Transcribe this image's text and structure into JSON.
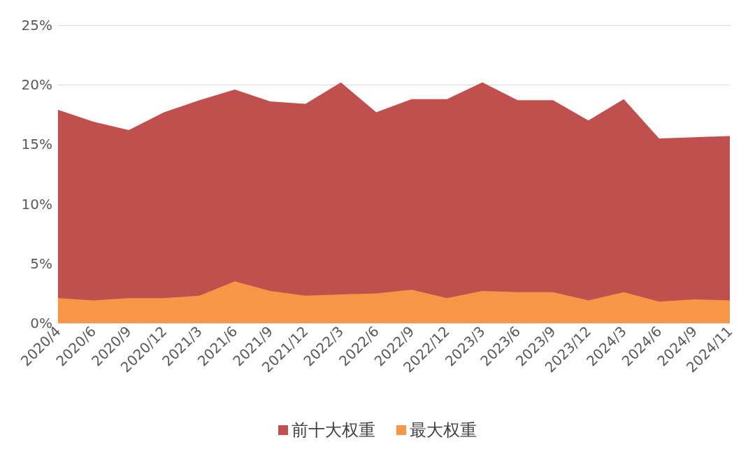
{
  "chart_data": {
    "type": "area",
    "categories": [
      "2020/4",
      "2020/6",
      "2020/9",
      "2020/12",
      "2021/3",
      "2021/6",
      "2021/9",
      "2021/12",
      "2022/3",
      "2022/6",
      "2022/9",
      "2022/12",
      "2023/3",
      "2023/6",
      "2023/9",
      "2023/12",
      "2024/3",
      "2024/6",
      "2024/9",
      "2024/11"
    ],
    "series": [
      {
        "name": "前十大权重",
        "color": "#c0504d",
        "values": [
          17.9,
          16.9,
          16.2,
          17.7,
          18.7,
          19.6,
          18.6,
          18.4,
          20.2,
          17.7,
          18.8,
          18.8,
          20.2,
          18.7,
          18.7,
          17.0,
          18.8,
          15.5,
          15.6,
          15.7
        ]
      },
      {
        "name": "最大权重",
        "color": "#f79646",
        "values": [
          2.1,
          1.9,
          2.1,
          2.1,
          2.3,
          3.5,
          2.7,
          2.3,
          2.4,
          2.5,
          2.8,
          2.1,
          2.7,
          2.6,
          2.6,
          1.9,
          2.6,
          1.8,
          2.0,
          1.9
        ]
      }
    ],
    "ylim": [
      0,
      25
    ],
    "yticks": [
      {
        "value": 0,
        "label": "0%"
      },
      {
        "value": 5,
        "label": "5%"
      },
      {
        "value": 10,
        "label": "10%"
      },
      {
        "value": 15,
        "label": "15%"
      },
      {
        "value": 20,
        "label": "20%"
      },
      {
        "value": 25,
        "label": "25%"
      }
    ],
    "grid": "y",
    "legend": "bottom",
    "marker": "none"
  }
}
